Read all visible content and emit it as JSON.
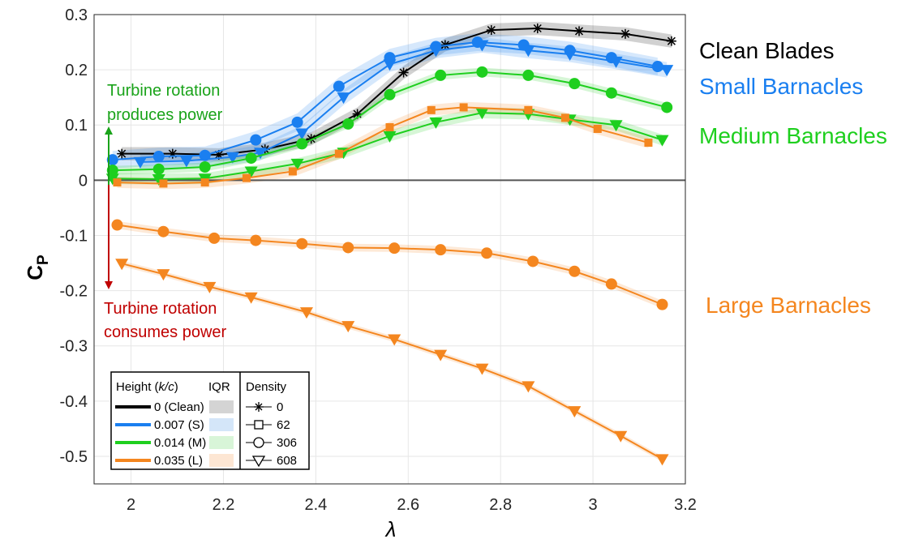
{
  "chart_data": {
    "type": "line",
    "xlabel": "λ",
    "ylabel": "C",
    "ylabel_sub": "P",
    "xlim": [
      1.92,
      3.2
    ],
    "ylim": [
      -0.55,
      0.3
    ],
    "grid": true,
    "xticks": [
      2,
      2.2,
      2.4,
      2.6,
      2.8,
      3,
      3.2
    ],
    "yticks": [
      -0.5,
      -0.4,
      -0.3,
      -0.2,
      -0.1,
      0,
      0.1,
      0.2,
      0.3
    ],
    "series": [
      {
        "name": "Clean",
        "color": "#000000",
        "marker": "star",
        "x": [
          1.98,
          2.09,
          2.19,
          2.29,
          2.39,
          2.49,
          2.59,
          2.68,
          2.78,
          2.88,
          2.97,
          3.07,
          3.17
        ],
        "y": [
          0.048,
          0.048,
          0.046,
          0.056,
          0.075,
          0.12,
          0.195,
          0.245,
          0.272,
          0.275,
          0.27,
          0.265,
          0.252
        ]
      },
      {
        "name": "Small 306",
        "color": "#1a7ff0",
        "marker": "circle",
        "x": [
          1.96,
          2.06,
          2.16,
          2.27,
          2.36,
          2.45,
          2.56,
          2.66,
          2.75,
          2.85,
          2.95,
          3.04,
          3.14
        ],
        "y": [
          0.037,
          0.043,
          0.045,
          0.073,
          0.105,
          0.17,
          0.222,
          0.242,
          0.25,
          0.245,
          0.235,
          0.222,
          0.206
        ]
      },
      {
        "name": "Small 608",
        "color": "#1a7ff0",
        "marker": "triangle",
        "x": [
          2.02,
          2.12,
          2.22,
          2.28,
          2.37,
          2.46,
          2.56,
          2.66,
          2.76,
          2.86,
          2.95,
          3.05,
          3.16
        ],
        "y": [
          0.033,
          0.035,
          0.042,
          0.05,
          0.085,
          0.15,
          0.21,
          0.235,
          0.245,
          0.235,
          0.228,
          0.215,
          0.2
        ]
      },
      {
        "name": "Medium 306",
        "color": "#1ecf1e",
        "marker": "circle",
        "x": [
          1.96,
          2.06,
          2.16,
          2.26,
          2.37,
          2.47,
          2.56,
          2.67,
          2.76,
          2.86,
          2.96,
          3.04,
          3.16
        ],
        "y": [
          0.018,
          0.02,
          0.024,
          0.04,
          0.066,
          0.102,
          0.155,
          0.19,
          0.196,
          0.19,
          0.175,
          0.158,
          0.132
        ]
      },
      {
        "name": "Medium 608",
        "color": "#1ecf1e",
        "marker": "triangle",
        "x": [
          1.96,
          2.06,
          2.16,
          2.26,
          2.36,
          2.46,
          2.56,
          2.66,
          2.76,
          2.86,
          2.95,
          3.05,
          3.15
        ],
        "y": [
          0.003,
          0.002,
          0.003,
          0.016,
          0.03,
          0.05,
          0.08,
          0.105,
          0.122,
          0.12,
          0.11,
          0.1,
          0.073
        ]
      },
      {
        "name": "Large 62",
        "color": "#f4861f",
        "marker": "square",
        "x": [
          1.97,
          2.07,
          2.16,
          2.25,
          2.35,
          2.45,
          2.56,
          2.65,
          2.72,
          2.86,
          2.94,
          3.01,
          3.12
        ],
        "y": [
          -0.004,
          -0.006,
          -0.004,
          0.004,
          0.016,
          0.048,
          0.096,
          0.127,
          0.132,
          0.127,
          0.113,
          0.093,
          0.068
        ]
      },
      {
        "name": "Large 306",
        "color": "#f4861f",
        "marker": "circle",
        "x": [
          1.97,
          2.07,
          2.18,
          2.27,
          2.37,
          2.47,
          2.57,
          2.67,
          2.77,
          2.87,
          2.96,
          3.04,
          3.15
        ],
        "y": [
          -0.081,
          -0.093,
          -0.105,
          -0.109,
          -0.115,
          -0.122,
          -0.123,
          -0.126,
          -0.132,
          -0.147,
          -0.165,
          -0.188,
          -0.225
        ]
      },
      {
        "name": "Large 608",
        "color": "#f4861f",
        "marker": "triangle",
        "x": [
          1.98,
          2.07,
          2.17,
          2.26,
          2.38,
          2.47,
          2.57,
          2.67,
          2.76,
          2.86,
          2.96,
          3.06,
          3.15
        ],
        "y": [
          -0.151,
          -0.17,
          -0.193,
          -0.212,
          -0.239,
          -0.264,
          -0.288,
          -0.316,
          -0.341,
          -0.373,
          -0.418,
          -0.463,
          -0.505
        ]
      }
    ],
    "annotations": {
      "produces_line1": "Turbine rotation",
      "produces_line2": "produces power",
      "consumes_line1": "Turbine rotation",
      "consumes_line2": "consumes power",
      "clean": "Clean Blades",
      "small": "Small Barnacles",
      "medium": "Medium Barnacles",
      "large": "Large Barnacles"
    },
    "legend": {
      "placement": "bottom-left",
      "height_title_prefix": "Height (",
      "height_title_var": "k/c",
      "height_title_suffix": ")",
      "iqr_title": "IQR",
      "density_title": "Density",
      "heights": [
        {
          "label": "0 (Clean)",
          "color": "#000000",
          "iqr": "#d4d4d4"
        },
        {
          "label": "0.007 (S)",
          "color": "#1a7ff0",
          "iqr": "#d4e6f9"
        },
        {
          "label": "0.014 (M)",
          "color": "#1ecf1e",
          "iqr": "#d8f5d8"
        },
        {
          "label": "0.035 (L)",
          "color": "#f4861f",
          "iqr": "#fde6d3"
        }
      ],
      "densities": [
        {
          "label": "0",
          "marker": "star"
        },
        {
          "label": "62",
          "marker": "square"
        },
        {
          "label": "306",
          "marker": "circle"
        },
        {
          "label": "608",
          "marker": "triangle"
        }
      ]
    },
    "colors": {
      "produces": "#1aa31a",
      "consumes": "#c00000",
      "clean": "#000000",
      "small": "#1a7ff0",
      "medium": "#1ecf1e",
      "large": "#f4861f"
    }
  }
}
